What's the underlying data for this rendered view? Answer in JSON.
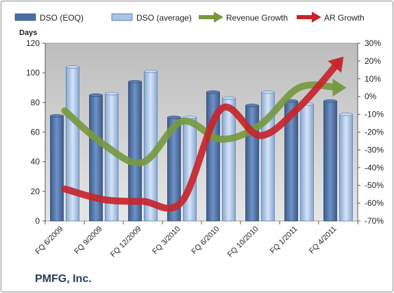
{
  "company": "PMFG, Inc.",
  "chart_data": {
    "type": "bar",
    "categories": [
      "FQ 6/2009",
      "FQ 9/2009",
      "FQ 12/2009",
      "FQ 3/2010",
      "FQ 6/2010",
      "FQ 10/2010",
      "FQ 1/2011",
      "FQ 4/2011"
    ],
    "series": [
      {
        "name": "DSO (EOQ)",
        "type": "bar",
        "axis": "left",
        "values": [
          71,
          85,
          94,
          70,
          87,
          78,
          81,
          81
        ]
      },
      {
        "name": "DSO (average)",
        "type": "bar",
        "axis": "left",
        "values": [
          104,
          86,
          101,
          70,
          83,
          87,
          79,
          72
        ]
      },
      {
        "name": "Revenue Growth",
        "type": "line",
        "axis": "right",
        "values": [
          -8,
          -27,
          -37,
          -14,
          -24,
          -16,
          5,
          5
        ]
      },
      {
        "name": "AR Growth",
        "type": "line",
        "axis": "right",
        "values": [
          -52,
          -58,
          -59,
          -59,
          -7,
          -22,
          -6,
          19
        ]
      }
    ],
    "y_left": {
      "label": "Days",
      "min": 0,
      "max": 120,
      "step": 20
    },
    "y_right": {
      "min": -70,
      "max": 30,
      "step": 10,
      "format": "percent"
    },
    "legend": "top",
    "grid": false,
    "colors": {
      "DSO (EOQ)": "#4a6fa5",
      "DSO (average)": "#a9c3e6",
      "Revenue Growth": "#76993f",
      "AR Growth": "#c7252b"
    }
  }
}
